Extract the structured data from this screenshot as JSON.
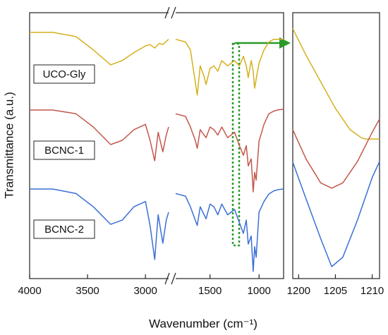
{
  "chart_data": [
    {
      "type": "line",
      "xlabel": "Wavenumber (cm⁻¹)",
      "ylabel": "Transmittance (a.u.)",
      "xlim": [
        4000,
        750
      ],
      "xbreak": [
        2800,
        1850
      ],
      "ylim": [
        0,
        100
      ],
      "xticks": [
        4000,
        3500,
        3000,
        1500,
        1000
      ],
      "series": [
        {
          "name": "UCO-Gly",
          "color": "#d4b01c",
          "x": [
            4000,
            3800,
            3600,
            3450,
            3300,
            3200,
            3100,
            3000,
            2960,
            2920,
            2880,
            2850,
            2800,
            1850,
            1750,
            1700,
            1650,
            1630,
            1600,
            1560,
            1540,
            1500,
            1460,
            1420,
            1380,
            1320,
            1250,
            1200,
            1160,
            1130,
            1110,
            1080,
            1060,
            1045,
            1020,
            1000,
            950,
            900,
            850,
            800,
            750
          ],
          "values": [
            92.6,
            92.6,
            91,
            86,
            80.4,
            82,
            85,
            87.5,
            88,
            86.7,
            88.5,
            88,
            90,
            90,
            89,
            86,
            74,
            69,
            80,
            76,
            73,
            79,
            80,
            78,
            82,
            80,
            82,
            80,
            83.6,
            80,
            75.6,
            82,
            78,
            71.6,
            77,
            81,
            86,
            89,
            90,
            90,
            90
          ]
        },
        {
          "name": "BCNC-1",
          "color": "#c4574a",
          "x": [
            4000,
            3800,
            3600,
            3450,
            3300,
            3200,
            3100,
            3000,
            2960,
            2920,
            2890,
            2850,
            2820,
            2800,
            1850,
            1750,
            1700,
            1650,
            1630,
            1600,
            1560,
            1540,
            1500,
            1460,
            1420,
            1380,
            1320,
            1250,
            1200,
            1160,
            1130,
            1110,
            1080,
            1060,
            1045,
            1030,
            1000,
            950,
            900,
            850,
            800,
            750
          ],
          "values": [
            63.4,
            63.4,
            62,
            57,
            50.4,
            52,
            56,
            58,
            52,
            44.3,
            55,
            47.7,
            54,
            57,
            62,
            61,
            57,
            52,
            49,
            56,
            54,
            53,
            57,
            56,
            54,
            57,
            53,
            55,
            50,
            46.4,
            50,
            42.4,
            45,
            32.6,
            40,
            37,
            51.7,
            58,
            62,
            63,
            63.5,
            63.7
          ]
        },
        {
          "name": "BCNC-2",
          "color": "#3b6fd6",
          "x": [
            4000,
            3800,
            3600,
            3450,
            3300,
            3200,
            3100,
            3000,
            2960,
            2920,
            2890,
            2850,
            2820,
            2800,
            1850,
            1750,
            1700,
            1650,
            1630,
            1600,
            1560,
            1540,
            1500,
            1460,
            1420,
            1380,
            1320,
            1250,
            1200,
            1160,
            1130,
            1110,
            1080,
            1060,
            1045,
            1030,
            1000,
            950,
            900,
            850,
            800,
            750
          ],
          "values": [
            33.7,
            33.7,
            32,
            27,
            20.4,
            22,
            27,
            29,
            20,
            7.2,
            24,
            13.3,
            22,
            25,
            32,
            31,
            27,
            22,
            20,
            27,
            24,
            22.5,
            28,
            27,
            24,
            28,
            24,
            26,
            21,
            17,
            22,
            13,
            16,
            2.7,
            12,
            8,
            25,
            29,
            31.8,
            33,
            33.5,
            33.7
          ]
        }
      ]
    },
    {
      "type": "line",
      "xlim": [
        1199.2,
        1211
      ],
      "ylim": [
        0,
        100
      ],
      "xticks": [
        1200,
        1205,
        1210
      ],
      "series": [
        {
          "color": "#d4b01c",
          "x": [
            1199.2,
            1201,
            1203,
            1205,
            1207,
            1208.5,
            1209,
            1210,
            1211
          ],
          "values": [
            94,
            84,
            74,
            64,
            56,
            53,
            52.5,
            52.5,
            52.5
          ]
        },
        {
          "color": "#c4574a",
          "x": [
            1199.2,
            1201,
            1203,
            1204.5,
            1206,
            1208,
            1210,
            1211
          ],
          "values": [
            56,
            45,
            36,
            34,
            36,
            44,
            55,
            60
          ]
        },
        {
          "color": "#3b6fd6",
          "x": [
            1199.2,
            1201,
            1203,
            1204.5,
            1206,
            1208,
            1210,
            1211
          ],
          "values": [
            43.8,
            30,
            15,
            4.5,
            8,
            22,
            38,
            44
          ]
        }
      ]
    }
  ]
}
